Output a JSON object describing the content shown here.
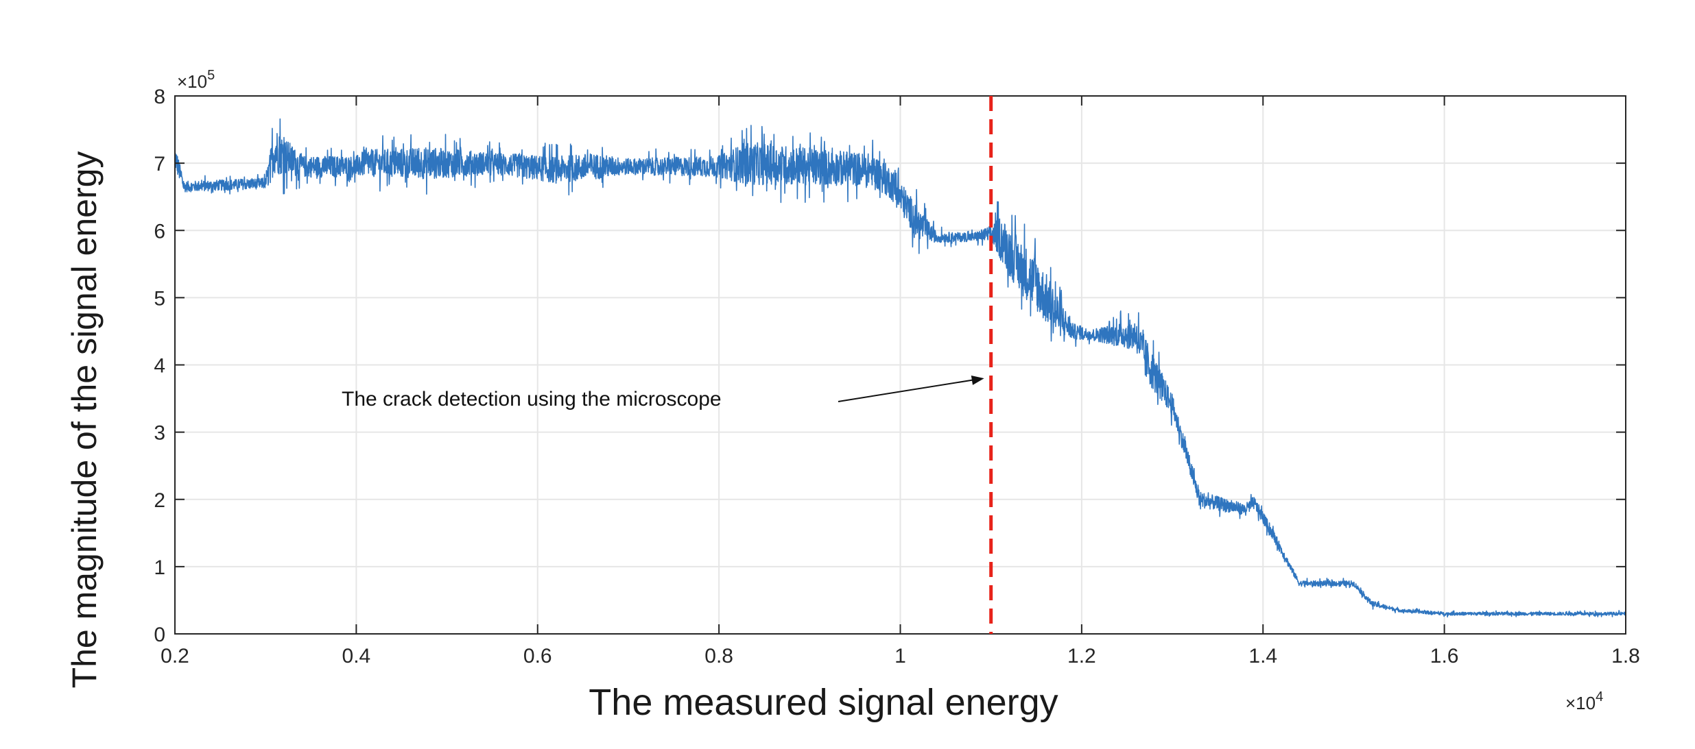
{
  "chart_data": {
    "type": "line",
    "title": "",
    "xlabel": "The measured signal energy",
    "ylabel": "The magnitude of the signal energy",
    "x_multiplier": "×10",
    "x_multiplier_exp": "4",
    "y_multiplier": "×10",
    "y_multiplier_exp": "5",
    "xlim": [
      0.2,
      1.8
    ],
    "ylim": [
      0,
      8
    ],
    "xticks": [
      "0.2",
      "0.4",
      "0.6",
      "0.8",
      "1",
      "1.2",
      "1.4",
      "1.6",
      "1.8"
    ],
    "yticks": [
      "0",
      "1",
      "2",
      "3",
      "4",
      "5",
      "6",
      "7",
      "8"
    ],
    "grid": true,
    "series": [
      {
        "name": "signal energy",
        "color": "#2f75bf",
        "x": [
          0.2,
          0.21,
          0.3,
          0.31,
          0.34,
          0.4,
          0.41,
          0.48,
          0.55,
          0.62,
          0.66,
          0.7,
          0.8,
          0.83,
          0.97,
          0.99,
          1.02,
          1.04,
          1.08,
          1.1,
          1.11,
          1.13,
          1.15,
          1.17,
          1.19,
          1.21,
          1.26,
          1.27,
          1.3,
          1.33,
          1.38,
          1.39,
          1.41,
          1.44,
          1.5,
          1.52,
          1.55,
          1.6,
          1.7,
          1.8
        ],
        "mean": [
          7.1,
          6.65,
          6.7,
          7.2,
          6.95,
          6.95,
          7.0,
          7.0,
          7.0,
          6.9,
          6.95,
          6.95,
          6.95,
          7.0,
          6.9,
          6.7,
          6.1,
          5.9,
          5.9,
          5.95,
          5.9,
          5.5,
          5.2,
          4.8,
          4.5,
          4.45,
          4.45,
          4.1,
          3.4,
          2.0,
          1.85,
          1.95,
          1.5,
          0.75,
          0.75,
          0.45,
          0.35,
          0.3,
          0.3,
          0.3
        ],
        "noise": [
          0.25,
          0.1,
          0.1,
          0.45,
          0.2,
          0.2,
          0.25,
          0.3,
          0.2,
          0.25,
          0.25,
          0.15,
          0.2,
          0.4,
          0.3,
          0.3,
          0.3,
          0.1,
          0.08,
          0.15,
          0.4,
          0.5,
          0.5,
          0.45,
          0.15,
          0.1,
          0.3,
          0.4,
          0.2,
          0.15,
          0.1,
          0.12,
          0.1,
          0.05,
          0.05,
          0.05,
          0.03,
          0.03,
          0.03,
          0.03
        ]
      }
    ],
    "vline": {
      "x": 1.1,
      "color": "#e8231a",
      "style": "dashed"
    },
    "annotation": {
      "text": "The crack detection using the microscope",
      "arrow_to_x": 1.1,
      "arrow_to_y": 3.8
    }
  }
}
